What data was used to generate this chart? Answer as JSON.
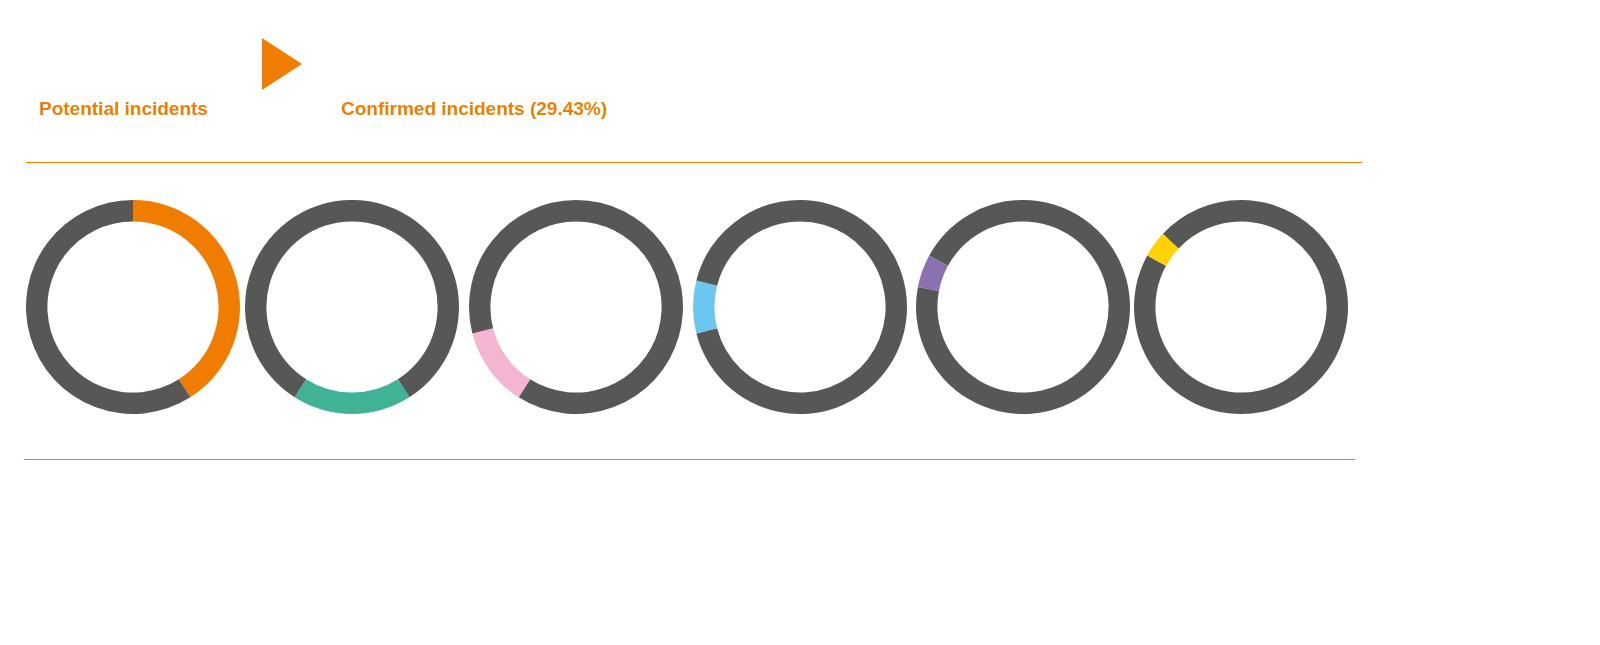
{
  "chart_data": [
    {
      "type": "other",
      "annotations": [
        "Potential incidents",
        "Confirmed incidents (29.43%)"
      ]
    },
    {
      "type": "donut",
      "categories": [
        null,
        null
      ],
      "values": [
        41,
        59
      ],
      "colors": [
        "#f07d00",
        "#575756"
      ]
    },
    {
      "type": "donut",
      "categories": [
        null,
        null,
        null
      ],
      "values": [
        41,
        18,
        41
      ],
      "colors": [
        "#575756",
        "#40b397",
        "#575756"
      ]
    },
    {
      "type": "donut",
      "categories": [
        null,
        null,
        null
      ],
      "values": [
        59,
        12,
        29
      ],
      "colors": [
        "#575756",
        "#f4b5d2",
        "#575756"
      ]
    },
    {
      "type": "donut",
      "categories": [
        null,
        null,
        null
      ],
      "values": [
        71,
        8,
        21
      ],
      "colors": [
        "#575756",
        "#6cc7f0",
        "#575756"
      ]
    },
    {
      "type": "donut",
      "categories": [
        null,
        null,
        null
      ],
      "values": [
        78,
        5,
        17
      ],
      "colors": [
        "#575756",
        "#8a72b2",
        "#575756"
      ]
    },
    {
      "type": "donut",
      "categories": [
        null,
        null,
        null
      ],
      "values": [
        83,
        4,
        13
      ],
      "colors": [
        "#575756",
        "#ffd200",
        "#575756"
      ]
    }
  ]
}
